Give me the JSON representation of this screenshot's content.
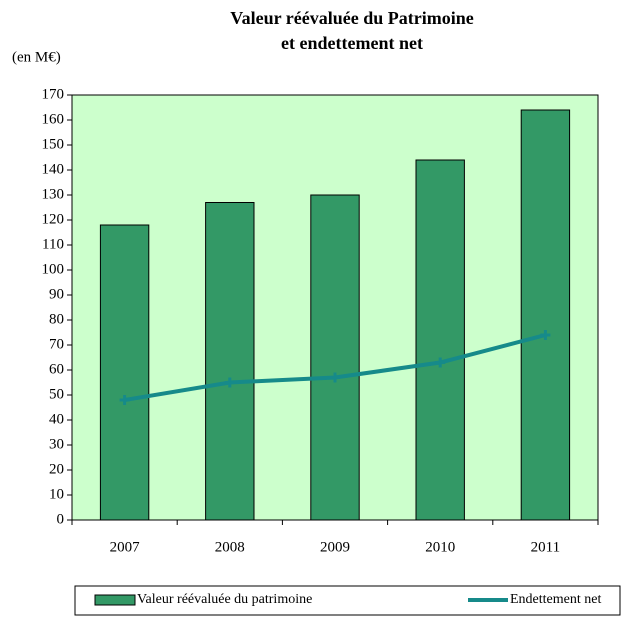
{
  "chart_data": {
    "type": "combo",
    "title": [
      "Valeur réévaluée du Patrimoine",
      "et endettement net"
    ],
    "y_axis_label": "(en M€)",
    "categories": [
      "2007",
      "2008",
      "2009",
      "2010",
      "2011"
    ],
    "series": [
      {
        "name": "Valeur réévaluée du patrimoine",
        "type": "bar",
        "color": "#339966",
        "values": [
          118,
          127,
          130,
          144,
          164
        ]
      },
      {
        "name": "Endettement net",
        "type": "line",
        "color": "#168a8a",
        "values": [
          48,
          55,
          57,
          63,
          74
        ]
      }
    ],
    "ylim": [
      0,
      170
    ],
    "yticks": [
      0,
      10,
      20,
      30,
      40,
      50,
      60,
      70,
      80,
      90,
      100,
      110,
      120,
      130,
      140,
      150,
      160,
      170
    ],
    "plot_background": "#ccffcc",
    "legend": "bottom"
  }
}
